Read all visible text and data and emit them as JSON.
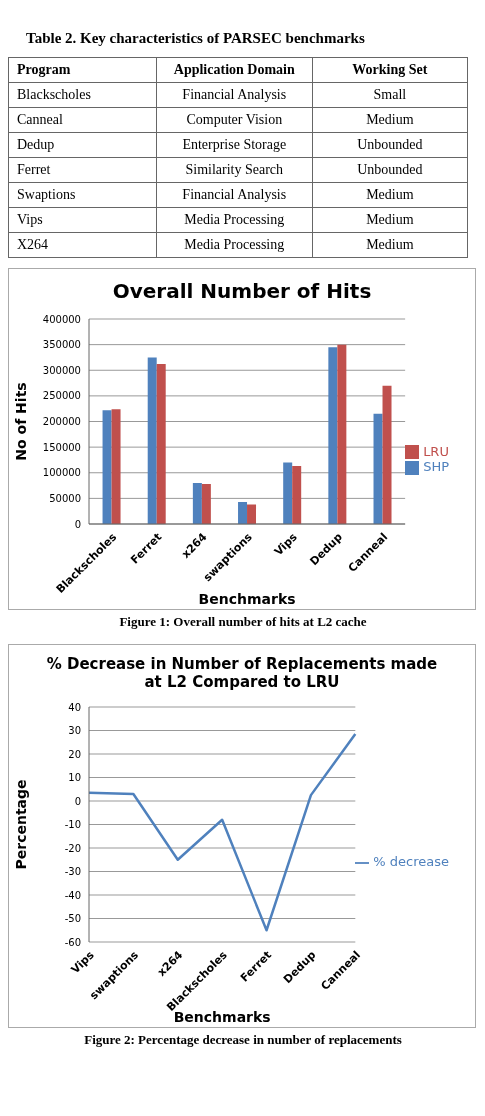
{
  "chart_data": [
    {
      "type": "other",
      "title": "Table 2. Key characteristics of PARSEC benchmarks",
      "annotations": [
        "Program",
        "Application Domain",
        "Working Set",
        "Blackscholes",
        "Financial Analysis",
        "Small",
        "Canneal",
        "Computer Vision",
        "Medium",
        "Dedup",
        "Enterprise Storage",
        "Unbounded",
        "Ferret",
        "Similarity Search",
        "Unbounded",
        "Swaptions",
        "Financial Analysis",
        "Medium",
        "Vips",
        "Media Processing",
        "Medium",
        "X264",
        "Media Processing",
        "Medium"
      ]
    },
    {
      "type": "bar",
      "title": "Overall Number of Hits",
      "xlabel": "Benchmarks",
      "ylabel": "No of Hits",
      "categories": [
        "Blackscholes",
        "Ferret",
        "x264",
        "swaptions",
        "Vips",
        "Dedup",
        "Canneal"
      ],
      "series": [
        {
          "name": "SHP",
          "color": "#4f81bd",
          "values": [
            222000,
            325000,
            80000,
            43000,
            120000,
            345000,
            215000
          ]
        },
        {
          "name": "LRU",
          "color": "#c0504d",
          "values": [
            224000,
            312000,
            78000,
            38000,
            113000,
            350000,
            270000
          ]
        }
      ],
      "ylim": [
        0,
        400000
      ],
      "yticks": [
        0,
        50000,
        100000,
        150000,
        200000,
        250000,
        300000,
        350000,
        400000
      ],
      "grid": "y",
      "legend": "right",
      "annotations": [
        "Figure 1: Overall number of hits at L2 cache"
      ]
    },
    {
      "type": "line",
      "title": "% Decrease in Number of Replacements made at L2 Compared to LRU",
      "xlabel": "Benchmarks",
      "ylabel": "Percentage",
      "categories": [
        "Vips",
        "swaptions",
        "x264",
        "Blackscholes",
        "Ferret",
        "Dedup",
        "Canneal"
      ],
      "series": [
        {
          "name": "% decrease",
          "color": "#4f81bd",
          "values": [
            3.5,
            3,
            -25,
            -8,
            -55,
            2.5,
            28.5
          ]
        }
      ],
      "ylim": [
        -60,
        40
      ],
      "yticks": [
        -60,
        -50,
        -40,
        -30,
        -20,
        -10,
        0,
        10,
        20,
        30,
        40
      ],
      "grid": "y",
      "legend": "right",
      "marker": "none",
      "line_style": "solid",
      "annotations": [
        "Figure 2: Percentage decrease in number of replacements"
      ]
    }
  ]
}
